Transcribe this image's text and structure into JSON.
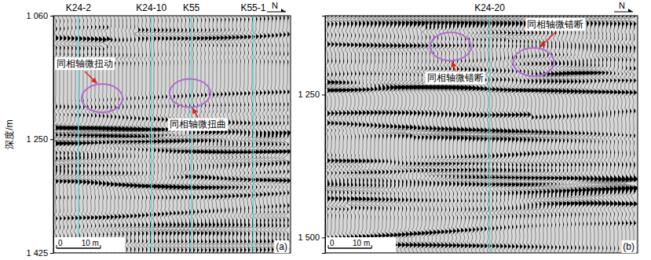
{
  "chart_data": [
    {
      "type": "seismic_section",
      "panel": "(a)",
      "north": "N",
      "ylabel": "深度/m",
      "ylim": [
        1060,
        1425
      ],
      "yticks": [
        {
          "value": 1060,
          "label": "1 060"
        },
        {
          "value": 1250,
          "label": "1 250"
        },
        {
          "value": 1425,
          "label": "1 425"
        }
      ],
      "xlim": [
        0,
        54
      ],
      "wells": [
        {
          "name": "K24-2",
          "x": 5.7
        },
        {
          "name": "K24-10",
          "x": 22.3
        },
        {
          "name": "K55",
          "x": 31.4
        },
        {
          "name": "K55-1",
          "x": 45.5
        }
      ],
      "annotations": [
        {
          "text": "同相轴微扭动",
          "x": 11.1,
          "y": 1187
        },
        {
          "text": "同相轴微扭曲",
          "x": 31.1,
          "y": 1179
        }
      ],
      "scale_bar": [
        0,
        {
          "value": 10,
          "label": "10 m"
        }
      ]
    },
    {
      "type": "seismic_section",
      "panel": "(b)",
      "north": "N",
      "ylim": [
        1112,
        1527
      ],
      "yticks": [
        {
          "value": 1250,
          "label": "1 250"
        },
        {
          "value": 1500,
          "label": "1 500"
        }
      ],
      "xlim": [
        0,
        72
      ],
      "wells": [
        {
          "name": "K24-20",
          "x": 37.9
        }
      ],
      "annotations": [
        {
          "text": "同相轴微错断",
          "x": 28.9,
          "y": 1166
        },
        {
          "text": "同相轴微错断",
          "x": 48.0,
          "y": 1193
        }
      ],
      "scale_bar": [
        0,
        {
          "value": 10,
          "label": "10 m"
        }
      ]
    }
  ]
}
